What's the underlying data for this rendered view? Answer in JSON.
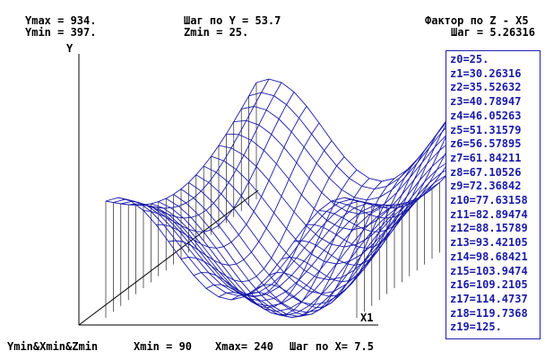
{
  "header": {
    "ymax": "Ymax = 934.",
    "ymin": "Ymin = 397.",
    "step_y": "Шаг по Y = 53.7",
    "zmin": "Zmin = 25.",
    "factor_z": "Фактор по Z - X5",
    "step_z": "Шаг = 5.26316"
  },
  "axes": {
    "y_label": "Y",
    "x_label": "X1"
  },
  "footer": {
    "label": "Ymin&Xmin&Zmin",
    "xmin": "Xmin = 90",
    "xmax": "Xmax= 240",
    "step_x": "Шаг по X= 7.5"
  },
  "z_levels": [
    "z0=25.",
    "z1=30.26316",
    "z2=35.52632",
    "z3=40.78947",
    "z4=46.05263",
    "z5=51.31579",
    "z6=56.57895",
    "z7=61.84211",
    "z8=67.10526",
    "z9=72.36842",
    "z10=77.63158",
    "z11=82.89474",
    "z12=88.15789",
    "z13=93.42105",
    "z14=98.68421",
    "z15=103.9474",
    "z16=109.2105",
    "z17=114.4737",
    "z18=119.7368",
    "z19=125."
  ],
  "colors": {
    "mesh": "#1a1aa8",
    "axes": "#000000",
    "text": "#000000"
  },
  "chart_data": {
    "type": "surface-wireframe",
    "x_range": [
      90,
      240
    ],
    "x_step": 7.5,
    "y_range": [
      397,
      934
    ],
    "y_step": 53.7,
    "z_range": [
      25,
      125
    ],
    "z_step": 5.26316,
    "x_label": "X1",
    "y_label": "Y"
  }
}
